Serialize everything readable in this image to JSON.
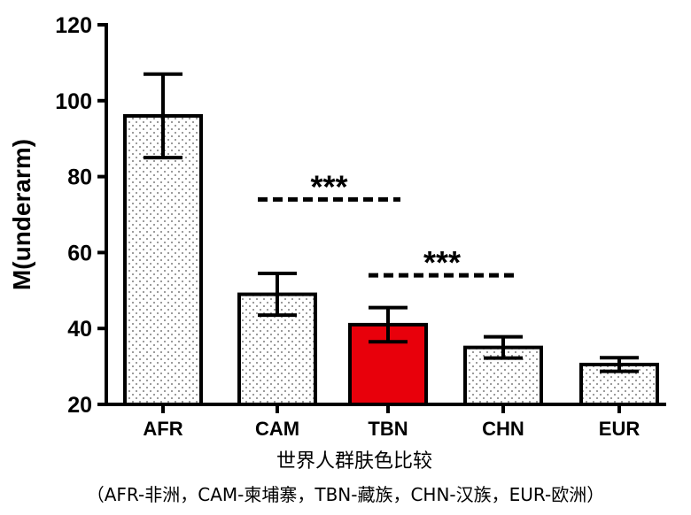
{
  "chart_data": {
    "type": "bar",
    "categories": [
      "AFR",
      "CAM",
      "TBN",
      "CHN",
      "EUR"
    ],
    "values": [
      96,
      49,
      41,
      35,
      30.5
    ],
    "errors": [
      11,
      5.5,
      4.5,
      2.8,
      1.8
    ],
    "ylabel": "M(underarm)",
    "xlabel": "世界人群肤色比较",
    "caption": "（AFR-非洲，CAM-柬埔寨，TBN-藏族，CHN-汉族，EUR-欧洲）",
    "ylim": [
      20,
      120
    ],
    "yticks": [
      20,
      40,
      60,
      80,
      100,
      120
    ],
    "highlight_category": "TBN",
    "colors": {
      "bar_fill": "#ffffff",
      "highlight_fill": "#e8000b",
      "stroke": "#000000",
      "dots": "#555555"
    },
    "significance": [
      {
        "from": "CAM",
        "to": "TBN",
        "label": "***",
        "y": 74
      },
      {
        "from": "TBN",
        "to": "CHN",
        "label": "***",
        "y": 54
      }
    ]
  }
}
